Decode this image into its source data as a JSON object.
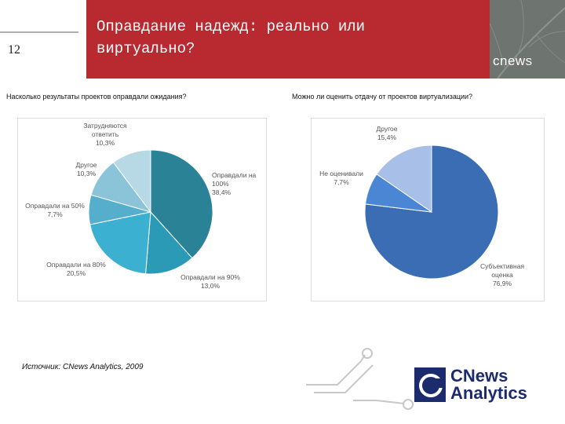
{
  "header": {
    "slide_number": "12",
    "title_line1": "Оправдание надежд: реально или",
    "title_line2": "виртуально?",
    "logo_text": "cnews"
  },
  "colors": {
    "header_red": "#b82a2f",
    "brand_navy": "#1c2b6e"
  },
  "footer": {
    "source": "Источник: CNews Analytics, 2009",
    "brand_line1": "CNews",
    "brand_line2": "Analytics"
  },
  "chart_data": [
    {
      "type": "pie",
      "title": "Насколько результаты проектов оправдали ожидания?",
      "slices": [
        {
          "line1": "Оправдали на",
          "line2": "100%",
          "pct": "38,4%",
          "value": 38.4,
          "color": "#2a8297"
        },
        {
          "line1": "Оправдали на 90%",
          "line2": "",
          "pct": "13,0%",
          "value": 13.0,
          "color": "#2b9ab7"
        },
        {
          "line1": "Оправдали на 80%",
          "line2": "",
          "pct": "20,5%",
          "value": 20.5,
          "color": "#3cb0d1"
        },
        {
          "line1": "Оправдали на 50%",
          "line2": "",
          "pct": "7,7%",
          "value": 7.7,
          "color": "#55aecb"
        },
        {
          "line1": "Другое",
          "line2": "",
          "pct": "10,3%",
          "value": 10.3,
          "color": "#8bc4d8"
        },
        {
          "line1": "Затрудняются",
          "line2": "ответить",
          "pct": "10,3%",
          "value": 10.3,
          "color": "#b7d9e6"
        }
      ]
    },
    {
      "type": "pie",
      "title": "Можно ли оценить отдачу от проектов виртуализации?",
      "slices": [
        {
          "line1": "Субъективная",
          "line2": "оценка",
          "pct": "76,9%",
          "value": 76.9,
          "color": "#3b6db4"
        },
        {
          "line1": "Не оценивали",
          "line2": "",
          "pct": "7,7%",
          "value": 7.7,
          "color": "#4a86d4"
        },
        {
          "line1": "Другое",
          "line2": "",
          "pct": "15,4%",
          "value": 15.4,
          "color": "#a8c0e8"
        }
      ]
    }
  ]
}
